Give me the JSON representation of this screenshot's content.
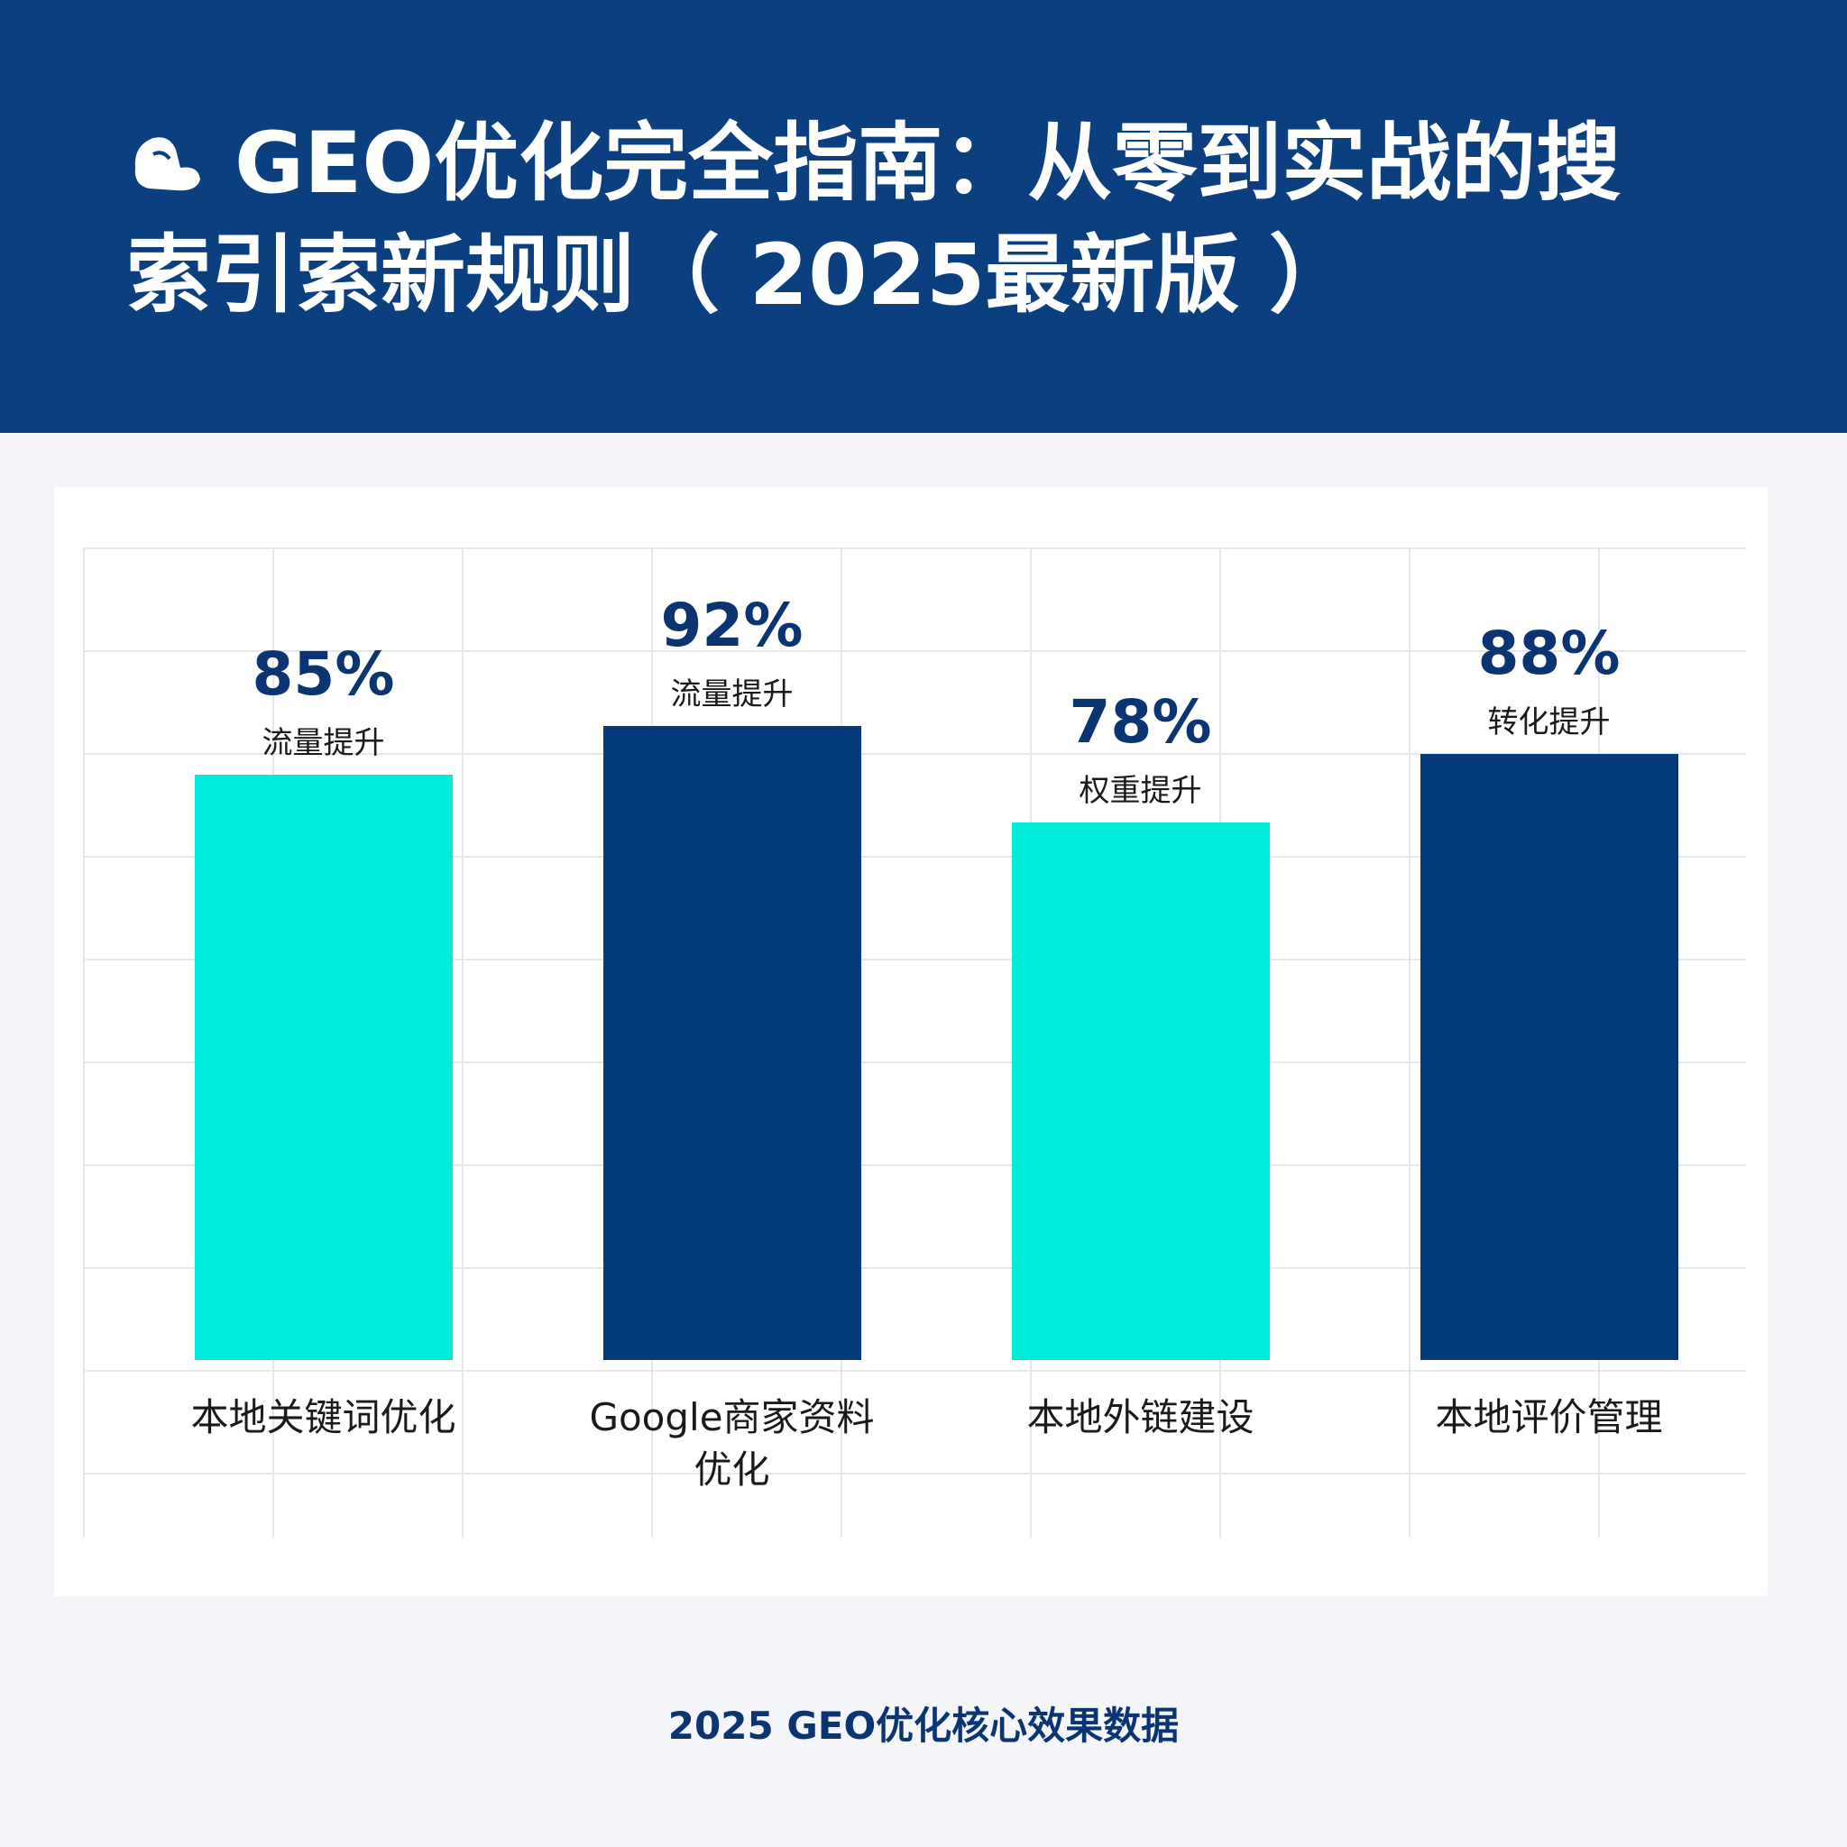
{
  "chart_data": {
    "type": "bar",
    "title": "GEO优化完全指南：从零到实战的搜索引索新规则（ 2025最新版 ）",
    "categories": [
      "本地关键词优化",
      "Google商家资料优化",
      "本地外链建设",
      "本地评价管理"
    ],
    "values": [
      85,
      92,
      78,
      88
    ],
    "value_labels": [
      "85%",
      "92%",
      "78%",
      "88%"
    ],
    "annotations": [
      "流量提升",
      "流量提升",
      "权重提升",
      "转化提升"
    ],
    "colors": [
      "#02ecdc",
      "#053b7a",
      "#02ecdc",
      "#053b7a"
    ],
    "ylim": [
      0,
      100
    ],
    "caption": "2025 GEO优化核心效果数据"
  }
}
